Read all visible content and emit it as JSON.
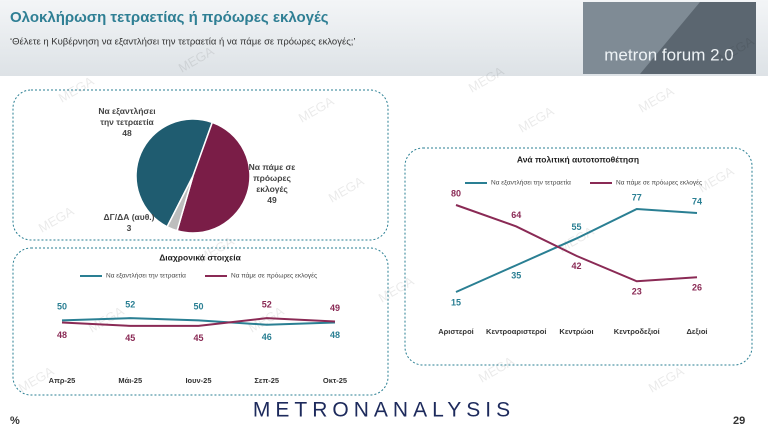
{
  "header": {
    "title": "Ολοκλήρωση τετραετίας ή πρόωρες εκλογές",
    "subtitle": "‘Θέλετε η Κυβέρνηση να εξαντλήσει την τετραετία ή να πάμε σε πρόωρες εκλογές;’",
    "logo": "metron forum 2.0"
  },
  "watermark": "MEGA",
  "footer": {
    "brand": "METRONANALYSIS",
    "unit": "%",
    "page": "29"
  },
  "chart_data": [
    {
      "type": "pie",
      "categories": [
        "Να εξαντλήσει την τετραετία",
        "Να πάμε σε πρόωρες εκλογές",
        "ΔΓ/ΔΑ (αυθ.)"
      ],
      "values": [
        48,
        49,
        3
      ],
      "colors": [
        "#1f5c70",
        "#7a1d47",
        "#bdbdbd"
      ]
    },
    {
      "type": "line",
      "title": "Διαχρονικά στοιχεία",
      "categories": [
        "Απρ-25",
        "Μάι-25",
        "Ιουν-25",
        "Σεπ-25",
        "Οκτ-25"
      ],
      "series": [
        {
          "name": "Να εξαντλήσει την τετραετία",
          "color": "#2a7f93",
          "values": [
            50,
            52,
            50,
            46,
            48
          ]
        },
        {
          "name": "Να πάμε σε πρόωρες εκλογές",
          "color": "#8a2a55",
          "values": [
            48,
            45,
            45,
            52,
            49
          ]
        }
      ]
    },
    {
      "type": "line",
      "title": "Ανά πολιτική αυτοτοποθέτηση",
      "categories": [
        "Αριστεροί",
        "Κεντροαριστεροί",
        "Κεντρώοι",
        "Κεντροδεξιοί",
        "Δεξιοί"
      ],
      "series": [
        {
          "name": "Να εξαντλήσει την τετραετία",
          "color": "#2a7f93",
          "values": [
            15,
            35,
            55,
            77,
            74
          ]
        },
        {
          "name": "Να πάμε σε πρόωρες εκλογές",
          "color": "#8a2a55",
          "values": [
            80,
            64,
            42,
            23,
            26
          ]
        }
      ]
    }
  ]
}
